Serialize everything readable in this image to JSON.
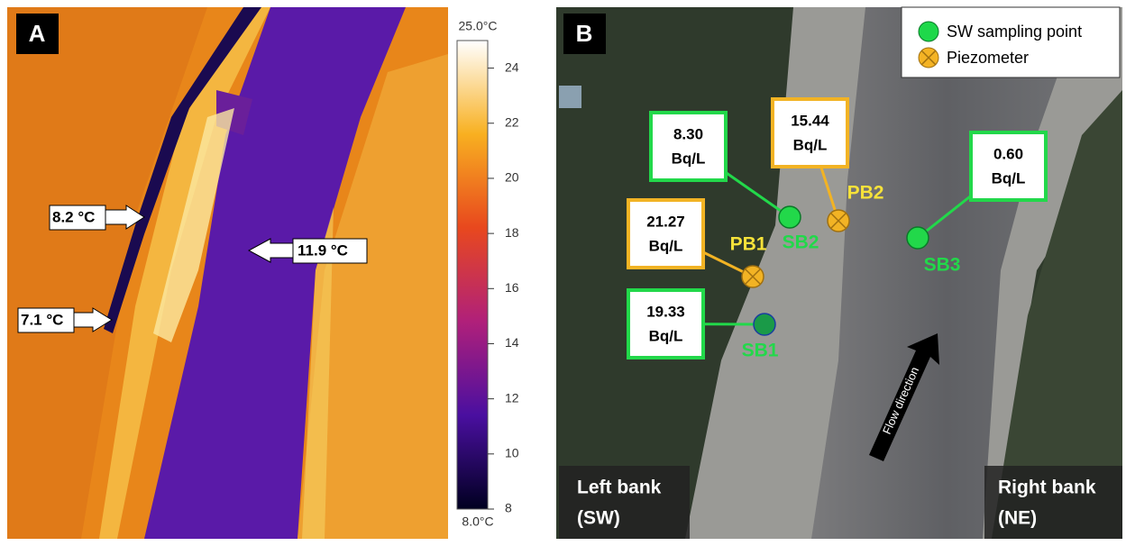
{
  "panel_a": {
    "letter": "A",
    "colorbar": {
      "max": {
        "value": 25,
        "label": "25.0°C"
      },
      "min": {
        "value": 8,
        "label": "8.0°C"
      },
      "ticks": [
        24,
        22,
        20,
        18,
        16,
        14,
        12,
        10,
        8
      ]
    },
    "annotations": [
      "8.2 °C",
      "11.9 °C",
      "7.1 °C"
    ]
  },
  "panel_b": {
    "letter": "B",
    "legend": [
      "SW sampling point",
      "Piezometer"
    ],
    "samples": [
      {
        "value": "8.30",
        "unit": "Bq/L",
        "site": "SB2"
      },
      {
        "value": "15.44",
        "unit": "Bq/L",
        "site": "PB2"
      },
      {
        "value": "21.27",
        "unit": "Bq/L",
        "site": "PB1"
      },
      {
        "value": "0.60",
        "unit": "Bq/L",
        "site": "SB3"
      },
      {
        "value": "19.33",
        "unit": "Bq/L",
        "site": "SB1"
      }
    ],
    "flow": "Flow direction",
    "left_bank": [
      "Left bank",
      "(SW)"
    ],
    "right_bank": [
      "Right bank",
      "(NE)"
    ]
  }
}
